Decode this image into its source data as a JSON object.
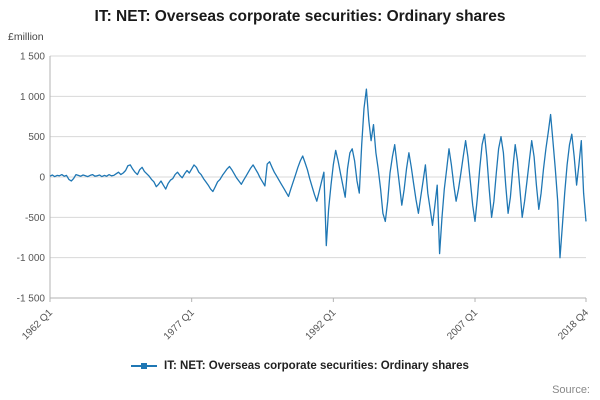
{
  "source_label": "Source:",
  "chart_data": {
    "type": "line",
    "title": "IT: NET: Overseas corporate securities: Ordinary shares",
    "unit_label": "£million",
    "legend_label": "IT: NET: Overseas corporate securities: Ordinary shares",
    "series_color": "#1f77b4",
    "grid_color": "#d8d8d8",
    "axis_color": "#b3b3b3",
    "tick_text_color": "#555555",
    "frequency": "quarterly",
    "x_start": "1962 Q1",
    "x_end": "2018 Q4",
    "ylim": [
      -1500,
      1500
    ],
    "yticks": [
      {
        "value": 1500,
        "label": "1 500"
      },
      {
        "value": 1000,
        "label": "1 000"
      },
      {
        "value": 500,
        "label": "500"
      },
      {
        "value": 0,
        "label": "0"
      },
      {
        "value": -500,
        "label": "-500"
      },
      {
        "value": -1000,
        "label": "-1 000"
      },
      {
        "value": -1500,
        "label": "-1 500"
      }
    ],
    "xticks": [
      {
        "index": 0,
        "label": "1962 Q1"
      },
      {
        "index": 60,
        "label": "1977 Q1"
      },
      {
        "index": 120,
        "label": "1992 Q1"
      },
      {
        "index": 180,
        "label": "2007 Q1"
      },
      {
        "index": 227,
        "label": "2018 Q4"
      }
    ],
    "values": [
      10,
      25,
      5,
      20,
      15,
      30,
      10,
      20,
      -30,
      -50,
      -20,
      30,
      20,
      10,
      25,
      15,
      5,
      20,
      30,
      10,
      15,
      25,
      5,
      20,
      10,
      30,
      15,
      20,
      40,
      60,
      30,
      50,
      80,
      140,
      150,
      100,
      60,
      30,
      90,
      120,
      70,
      40,
      10,
      -30,
      -60,
      -120,
      -90,
      -50,
      -100,
      -150,
      -80,
      -40,
      -20,
      30,
      60,
      20,
      -10,
      40,
      80,
      50,
      100,
      150,
      120,
      60,
      30,
      -20,
      -60,
      -100,
      -150,
      -180,
      -120,
      -60,
      -30,
      20,
      60,
      100,
      130,
      90,
      40,
      -10,
      -50,
      -90,
      -40,
      10,
      60,
      110,
      150,
      100,
      50,
      -10,
      -60,
      -110,
      160,
      190,
      120,
      60,
      10,
      -40,
      -90,
      -140,
      -190,
      -240,
      -150,
      -60,
      30,
      120,
      200,
      260,
      180,
      90,
      -20,
      -120,
      -220,
      -300,
      -180,
      -60,
      60,
      -850,
      -400,
      -100,
      150,
      330,
      200,
      50,
      -100,
      -250,
      100,
      300,
      350,
      200,
      -50,
      -200,
      400,
      850,
      1090,
      700,
      450,
      650,
      300,
      100,
      -150,
      -450,
      -550,
      -300,
      50,
      250,
      400,
      150,
      -100,
      -350,
      -150,
      100,
      300,
      120,
      -80,
      -280,
      -450,
      -250,
      -50,
      150,
      -200,
      -400,
      -600,
      -350,
      -100,
      -950,
      -500,
      -150,
      100,
      350,
      150,
      -100,
      -300,
      -150,
      50,
      250,
      450,
      250,
      -50,
      -350,
      -550,
      -250,
      100,
      400,
      530,
      250,
      -150,
      -500,
      -300,
      50,
      350,
      500,
      300,
      -100,
      -450,
      -250,
      100,
      400,
      200,
      -150,
      -500,
      -300,
      -50,
      200,
      450,
      250,
      -100,
      -400,
      -200,
      100,
      350,
      550,
      775,
      450,
      100,
      -300,
      -1000,
      -600,
      -200,
      150,
      400,
      530,
      250,
      -100,
      150,
      450,
      -200,
      -550
    ]
  }
}
